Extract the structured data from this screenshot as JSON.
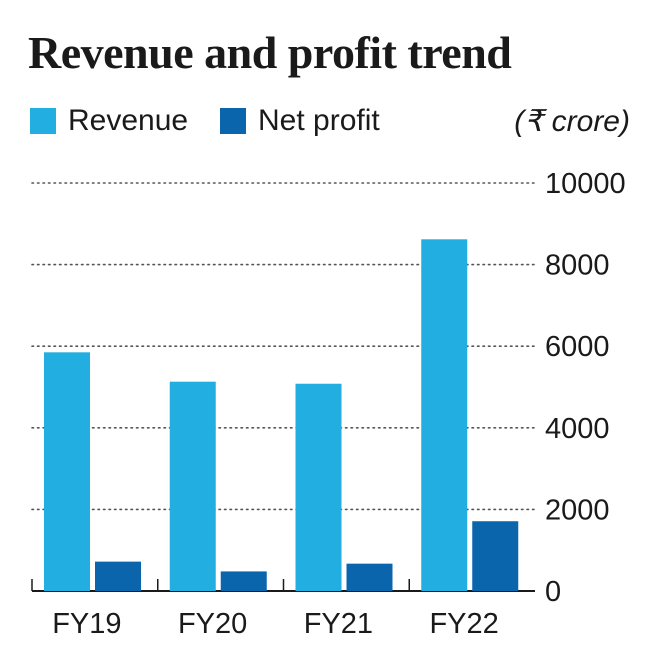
{
  "title": "Revenue and profit trend",
  "unit": "(₹ crore)",
  "colors": {
    "revenue": "#22aee0",
    "net_profit": "#0b65ad",
    "grid": "#555555",
    "axis": "#1a1a1a"
  },
  "chart_data": {
    "type": "bar",
    "title": "Revenue and profit trend",
    "categories": [
      "FY19",
      "FY20",
      "FY21",
      "FY22"
    ],
    "series": [
      {
        "name": "Revenue",
        "values": [
          5850,
          5130,
          5080,
          8620
        ]
      },
      {
        "name": "Net profit",
        "values": [
          720,
          480,
          670,
          1710
        ]
      }
    ],
    "yticks": [
      "0",
      "2000",
      "4000",
      "6000",
      "8000",
      "10000"
    ],
    "ylim": [
      0,
      10000
    ],
    "grid": "dotted horizontal",
    "legend_position": "top-left",
    "xlabel": "",
    "ylabel": ""
  }
}
